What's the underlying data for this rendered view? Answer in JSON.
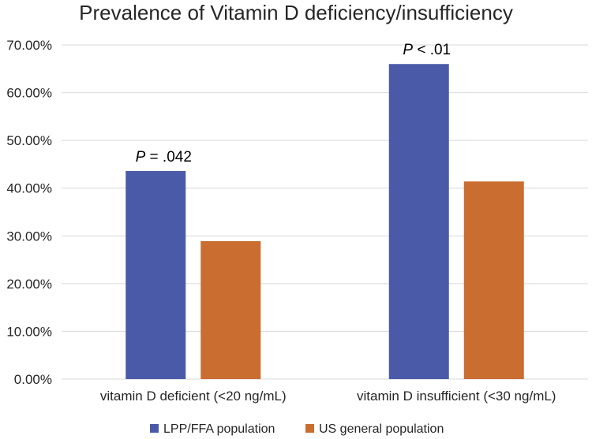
{
  "chart_data": {
    "type": "bar",
    "title": "Prevalence of Vitamin D deficiency/insufficiency",
    "xlabel": "",
    "ylabel": "",
    "ylim": [
      0,
      70
    ],
    "y_ticks": [
      0,
      10,
      20,
      30,
      40,
      50,
      60,
      70
    ],
    "y_tick_labels": [
      "0.00%",
      "10.00%",
      "20.00%",
      "30.00%",
      "40.00%",
      "50.00%",
      "60.00%",
      "70.00%"
    ],
    "grid": true,
    "legend_position": "bottom",
    "categories": [
      "vitamin D deficient (<20 ng/mL)",
      "vitamin D insufficient (<30 ng/mL)"
    ],
    "series": [
      {
        "name": "LPP/FFA population",
        "color": "#4a5aa8",
        "values": [
          43.6,
          66.0
        ]
      },
      {
        "name": "US general population",
        "color": "#c96d30",
        "values": [
          28.9,
          41.4
        ]
      }
    ],
    "annotations": [
      {
        "category_index": 0,
        "italic": "P",
        "text": " = .042"
      },
      {
        "category_index": 1,
        "italic": "P",
        "text": " < .01"
      }
    ]
  }
}
